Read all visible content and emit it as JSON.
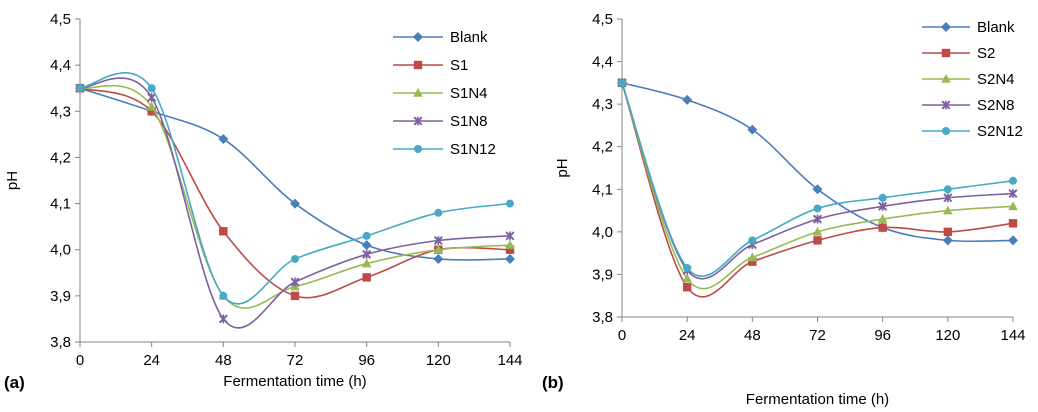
{
  "chart_data": [
    {
      "type": "line",
      "panel_label": "(a)",
      "xlabel": "Fermentation time (h)",
      "ylabel": "pH",
      "x": [
        0,
        24,
        48,
        72,
        96,
        120,
        144
      ],
      "x_tick_labels": [
        "0",
        "24",
        "48",
        "72",
        "96",
        "120",
        "144"
      ],
      "ylim": [
        3.8,
        4.5
      ],
      "y_tick_labels": [
        "3,8",
        "3,9",
        "4,0",
        "4,1",
        "4,2",
        "4,3",
        "4,4",
        "4,5"
      ],
      "grid": false,
      "smooth": true,
      "legend_position": "top-right",
      "series": [
        {
          "name": "Blank",
          "color": "#4a7ebb",
          "marker": "diamond",
          "values": [
            4.35,
            4.3,
            4.24,
            4.1,
            4.01,
            3.98,
            3.98
          ]
        },
        {
          "name": "S1",
          "color": "#be4b48",
          "marker": "square",
          "values": [
            4.35,
            4.3,
            4.04,
            3.9,
            3.94,
            4.0,
            4.0
          ]
        },
        {
          "name": "S1N4",
          "color": "#98b954",
          "marker": "triangle",
          "values": [
            4.35,
            4.31,
            3.9,
            3.92,
            3.97,
            4.0,
            4.01
          ]
        },
        {
          "name": "S1N8",
          "color": "#7d60a0",
          "marker": "x",
          "values": [
            4.35,
            4.33,
            3.85,
            3.93,
            3.99,
            4.02,
            4.03
          ]
        },
        {
          "name": "S1N12",
          "color": "#46aac5",
          "marker": "circle",
          "values": [
            4.35,
            4.35,
            3.9,
            3.98,
            4.03,
            4.08,
            4.1
          ]
        }
      ]
    },
    {
      "type": "line",
      "panel_label": "(b)",
      "xlabel": "Fermentation time (h)",
      "ylabel": "pH",
      "x": [
        0,
        24,
        48,
        72,
        96,
        120,
        144
      ],
      "x_tick_labels": [
        "0",
        "24",
        "48",
        "72",
        "96",
        "120",
        "144"
      ],
      "ylim": [
        3.8,
        4.5
      ],
      "y_tick_labels": [
        "3,8",
        "3,9",
        "4,0",
        "4,1",
        "4,2",
        "4,3",
        "4,4",
        "4,5"
      ],
      "grid": false,
      "smooth": true,
      "legend_position": "top-right",
      "series": [
        {
          "name": "Blank",
          "color": "#4a7ebb",
          "marker": "diamond",
          "values": [
            4.35,
            4.31,
            4.24,
            4.1,
            4.01,
            3.98,
            3.98
          ]
        },
        {
          "name": "S2",
          "color": "#be4b48",
          "marker": "square",
          "values": [
            4.35,
            3.87,
            3.93,
            3.98,
            4.01,
            4.0,
            4.02
          ]
        },
        {
          "name": "S2N4",
          "color": "#98b954",
          "marker": "triangle",
          "values": [
            4.35,
            3.89,
            3.94,
            4.0,
            4.03,
            4.05,
            4.06
          ]
        },
        {
          "name": "S2N8",
          "color": "#7d60a0",
          "marker": "x",
          "values": [
            4.35,
            3.91,
            3.97,
            4.03,
            4.06,
            4.08,
            4.09
          ]
        },
        {
          "name": "S2N12",
          "color": "#46aac5",
          "marker": "circle",
          "values": [
            4.35,
            3.915,
            3.98,
            4.055,
            4.08,
            4.1,
            4.12
          ]
        }
      ]
    }
  ]
}
